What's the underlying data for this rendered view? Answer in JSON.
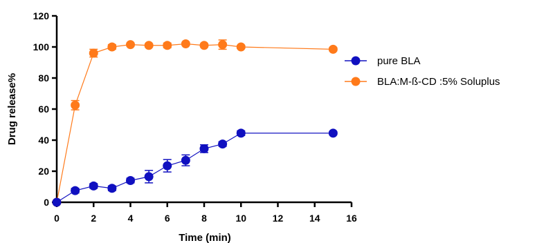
{
  "chart_data": {
    "type": "line",
    "xlabel": "Time (min)",
    "ylabel": "Drug release%",
    "xlim": [
      0,
      16
    ],
    "ylim": [
      0,
      120
    ],
    "xticks": [
      0,
      2,
      4,
      6,
      8,
      10,
      12,
      14,
      16
    ],
    "yticks": [
      0,
      20,
      40,
      60,
      80,
      100,
      120
    ],
    "grid": false,
    "legend_position": "right",
    "series": [
      {
        "name": "pure BLA",
        "color": "#1010c0",
        "x": [
          0,
          1,
          2,
          3,
          4,
          5,
          6,
          7,
          8,
          9,
          10,
          15
        ],
        "y": [
          0,
          7.5,
          10.5,
          9,
          14,
          16.5,
          23.5,
          27,
          34.5,
          37.5,
          44.5,
          44.5
        ],
        "err": [
          0,
          1.5,
          1.5,
          1.5,
          1.5,
          4,
          4,
          3.5,
          2.5,
          1.5,
          1.5,
          1
        ]
      },
      {
        "name": "BLA:M-ß-CD :5% Soluplus",
        "color": "#ff7a1a",
        "x": [
          0,
          1,
          2,
          3,
          4,
          5,
          6,
          7,
          8,
          9,
          10,
          15
        ],
        "y": [
          0,
          62.5,
          96,
          100,
          101.5,
          101,
          101,
          102,
          101,
          101.5,
          100,
          98.5
        ],
        "err": [
          0,
          3,
          2.5,
          1.5,
          1,
          1,
          1.5,
          1,
          1,
          3,
          1,
          1
        ]
      }
    ]
  }
}
